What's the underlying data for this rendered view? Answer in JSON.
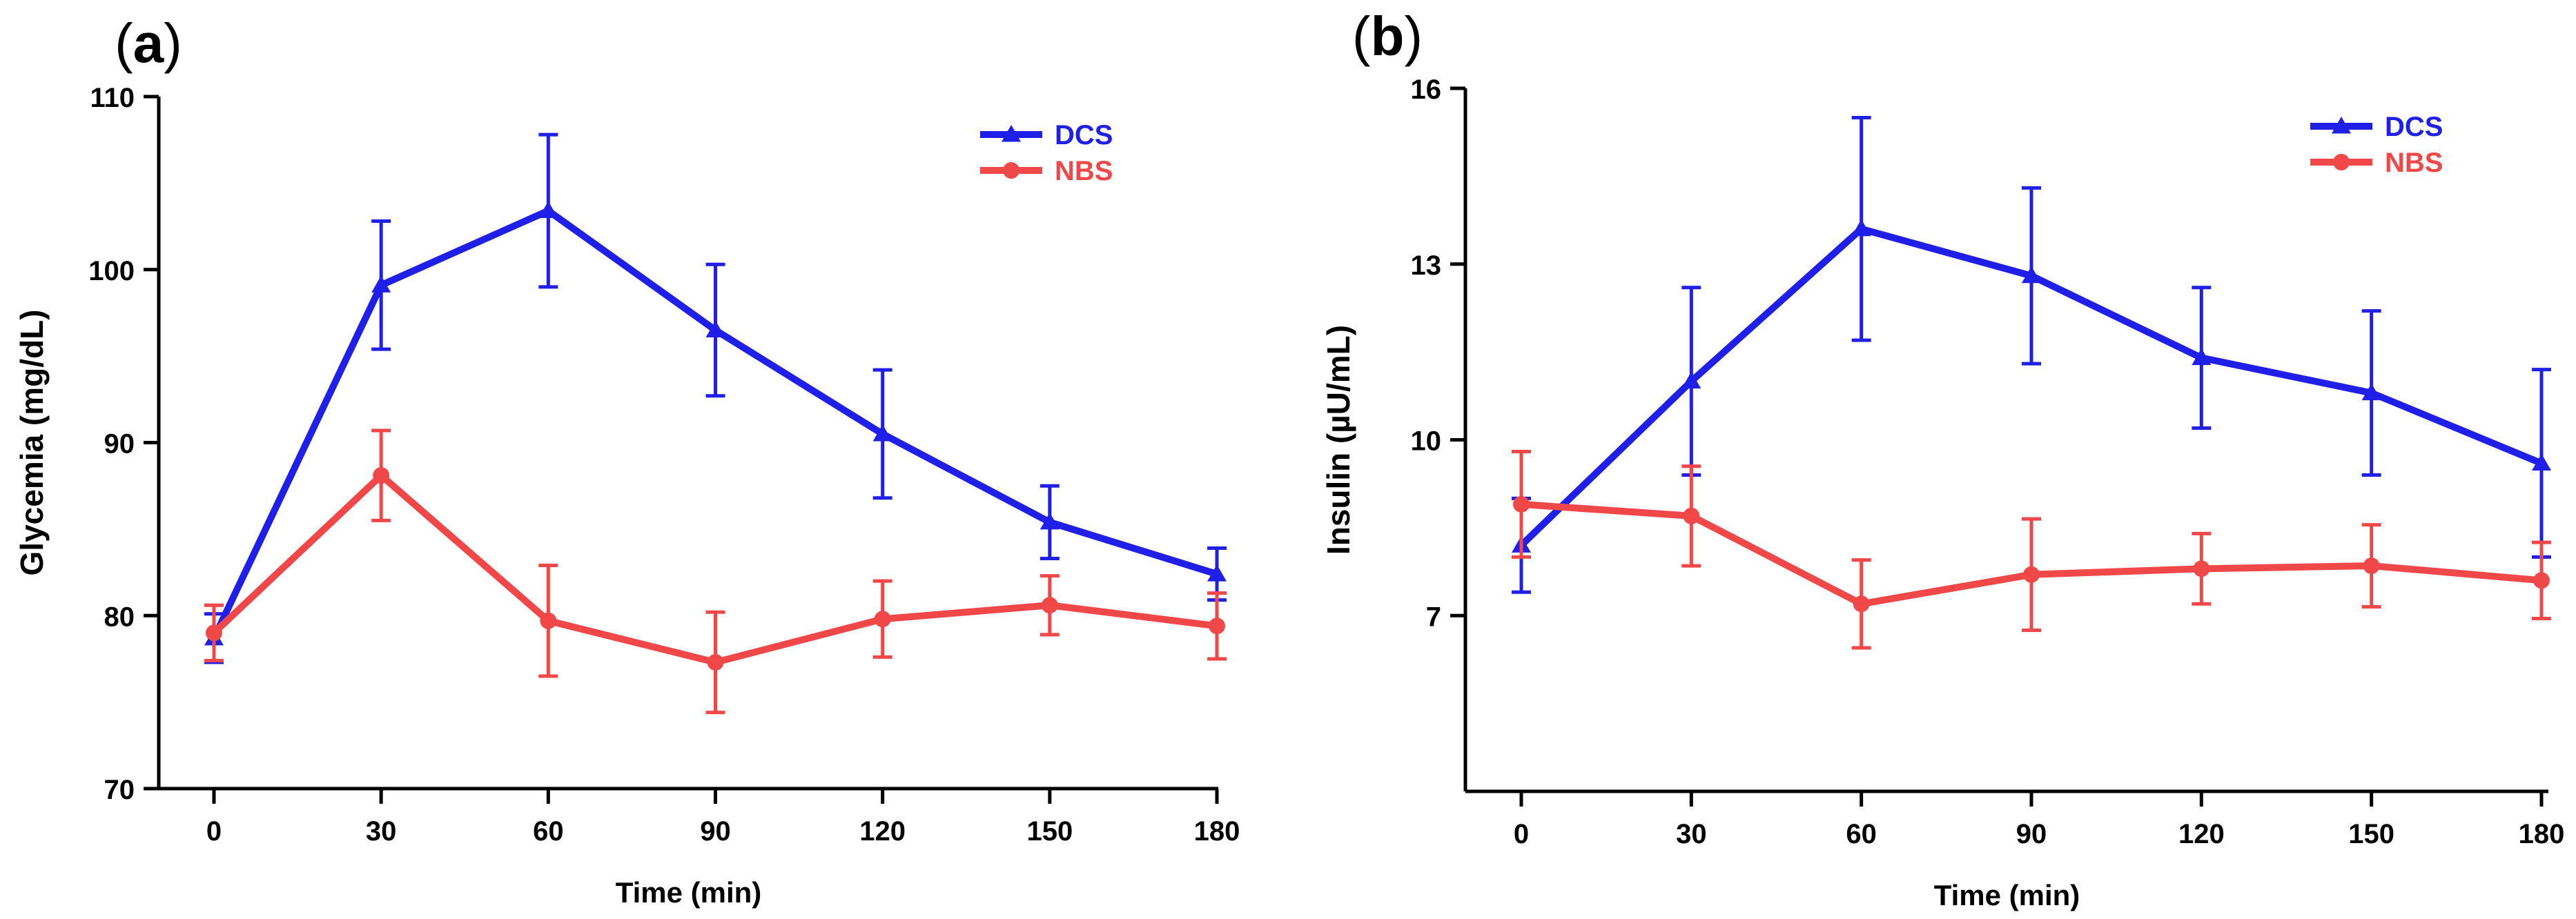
{
  "chart_data": [
    {
      "type": "line",
      "panel_label": "a",
      "xlabel": "Time (min)",
      "ylabel": "Glycemia (mg/dL)",
      "x": [
        0,
        30,
        60,
        90,
        120,
        150,
        180
      ],
      "x_ticks": [
        "0",
        "30",
        "60",
        "90",
        "120",
        "150",
        "180"
      ],
      "xlim": [
        0,
        180
      ],
      "ylim": [
        70,
        110
      ],
      "y_ticks": [
        70,
        80,
        90,
        100,
        110
      ],
      "grid": false,
      "legend_position": "top-right",
      "series": [
        {
          "name": "DCS",
          "color": "#1f1fe8",
          "marker": "triangle",
          "values": [
            78.7,
            99.1,
            103.4,
            96.5,
            90.5,
            85.4,
            82.4
          ],
          "errors": [
            1.4,
            3.7,
            4.4,
            3.8,
            3.7,
            2.1,
            1.5
          ]
        },
        {
          "name": "NBS",
          "color": "#f04848",
          "marker": "circle",
          "values": [
            79.0,
            88.1,
            79.7,
            77.3,
            79.8,
            80.6,
            79.4
          ],
          "errors": [
            1.6,
            2.6,
            3.2,
            2.9,
            2.2,
            1.7,
            1.9
          ]
        }
      ]
    },
    {
      "type": "line",
      "panel_label": "b",
      "xlabel": "Time (min)",
      "ylabel": "Insulin (µU/mL)",
      "x": [
        0,
        30,
        60,
        90,
        120,
        150,
        180
      ],
      "x_ticks": [
        "0",
        "30",
        "60",
        "90",
        "120",
        "150",
        "180"
      ],
      "xlim": [
        0,
        180
      ],
      "ylim": [
        4,
        16
      ],
      "y_ticks": [
        7,
        10,
        13,
        16
      ],
      "grid": false,
      "legend_position": "top-right",
      "series": [
        {
          "name": "DCS",
          "color": "#1f1fe8",
          "marker": "triangle",
          "values": [
            8.2,
            11.0,
            13.6,
            12.8,
            11.4,
            10.8,
            9.6
          ],
          "errors": [
            0.8,
            1.6,
            1.9,
            1.5,
            1.2,
            1.4,
            1.6
          ]
        },
        {
          "name": "NBS",
          "color": "#f04848",
          "marker": "circle",
          "values": [
            8.9,
            8.7,
            7.2,
            7.7,
            7.8,
            7.85,
            7.6
          ],
          "errors": [
            0.9,
            0.85,
            0.75,
            0.95,
            0.6,
            0.7,
            0.65
          ]
        }
      ]
    }
  ]
}
